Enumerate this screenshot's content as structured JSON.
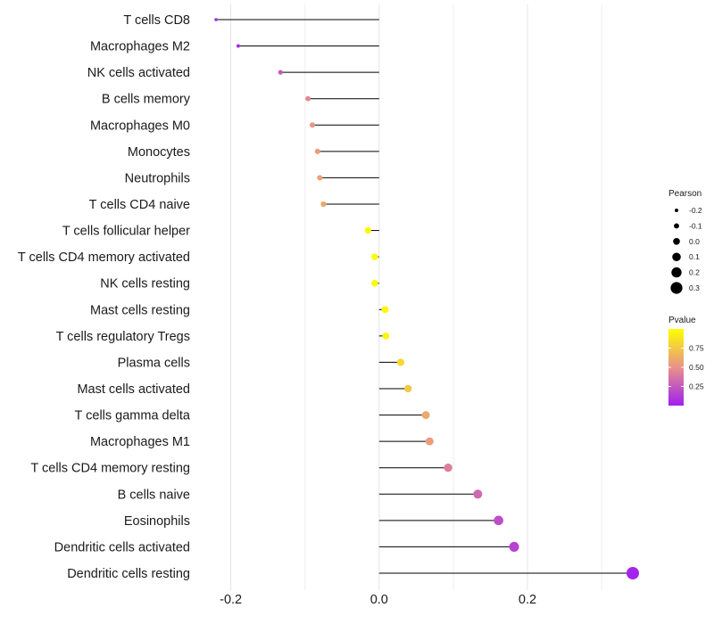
{
  "chart_data": {
    "type": "lollipop",
    "categories": [
      "T cells CD8",
      "Macrophages M2",
      "NK cells activated",
      "B cells memory",
      "Macrophages M0",
      "Monocytes",
      "Neutrophils",
      "T cells CD4 naive",
      "T cells follicular helper",
      "T cells CD4 memory activated",
      "NK cells resting",
      "Mast cells resting",
      "T cells regulatory  Tregs ",
      "Plasma cells",
      "Mast cells activated",
      "T cells gamma delta",
      "Macrophages M1",
      "T cells CD4 memory resting",
      "B cells naive",
      "Eosinophils",
      "Dendritic cells activated",
      "Dendritic cells resting"
    ],
    "pearson": [
      -0.22,
      -0.19,
      -0.133,
      -0.096,
      -0.09,
      -0.083,
      -0.08,
      -0.075,
      -0.015,
      -0.006,
      -0.006,
      0.008,
      0.009,
      0.029,
      0.039,
      0.063,
      0.068,
      0.093,
      0.133,
      0.161,
      0.182,
      0.342
    ],
    "pvalue": [
      0.02,
      0.05,
      0.25,
      0.45,
      0.5,
      0.55,
      0.58,
      0.6,
      0.97,
      0.98,
      0.98,
      0.97,
      0.96,
      0.82,
      0.75,
      0.6,
      0.55,
      0.42,
      0.32,
      0.2,
      0.15,
      0.02
    ],
    "xlim": [
      -0.22,
      0.342
    ],
    "xticks": [
      -0.2,
      0,
      0.2
    ],
    "xtick_labels": [
      "-0.2",
      "0.0",
      "0.2"
    ],
    "minor_xticks": [
      -0.1,
      0.1,
      0.3
    ],
    "xlabel": "",
    "ylabel": "",
    "title": "",
    "legend_size": {
      "title": "Pearson",
      "values": [
        -0.2,
        -0.1,
        0.0,
        0.1,
        0.2,
        0.3
      ],
      "labels": [
        "-0.2",
        "-0.1",
        "0.0",
        "0.1",
        "0.2",
        "0.3"
      ]
    },
    "legend_color": {
      "title": "Pvalue",
      "values": [
        0.75,
        0.5,
        0.25
      ],
      "labels": [
        "0.75",
        "0.50",
        "0.25"
      ],
      "range": [
        0.0,
        1.0
      ],
      "low_color": "#a020f0",
      "mid_color": "#e8928a",
      "high_color": "#ffff00"
    },
    "grid": true,
    "legend_position": "right"
  }
}
